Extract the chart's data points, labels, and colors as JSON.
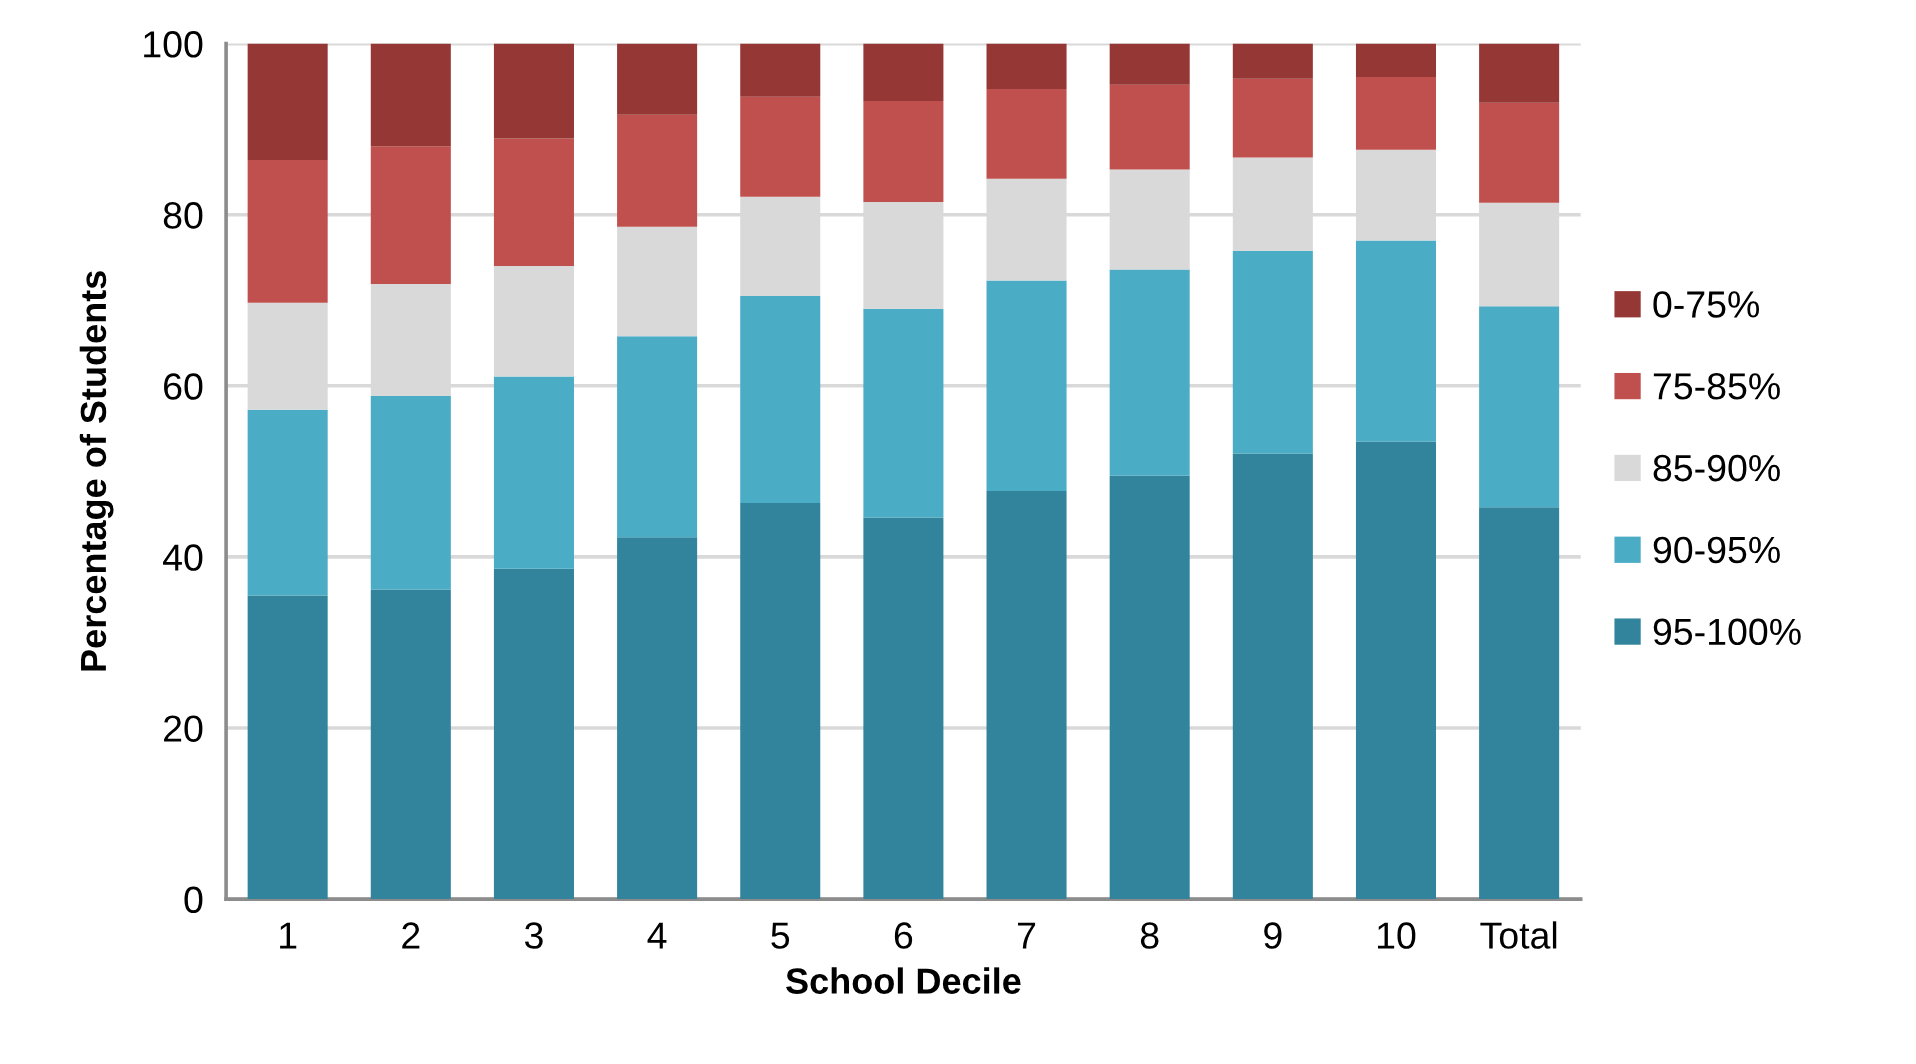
{
  "chart_data": {
    "type": "bar",
    "stacked": true,
    "xlabel": "School Decile",
    "ylabel": "Percentage of Students",
    "categories": [
      "1",
      "2",
      "3",
      "4",
      "5",
      "6",
      "7",
      "8",
      "9",
      "10",
      "Total"
    ],
    "series": [
      {
        "name": "95-100%",
        "color": "#31849b",
        "values": [
          35.5,
          36.2,
          38.6,
          42.3,
          46.3,
          44.6,
          47.7,
          49.5,
          52.1,
          53.5,
          45.8
        ]
      },
      {
        "name": "90-95%",
        "color": "#4bacc6",
        "values": [
          21.7,
          22.6,
          22.5,
          23.5,
          24.2,
          24.4,
          24.6,
          24.1,
          23.7,
          23.5,
          23.5
        ]
      },
      {
        "name": "85-90%",
        "color": "#d9d9d9",
        "values": [
          12.5,
          13.1,
          12.9,
          12.8,
          11.6,
          12.5,
          11.9,
          11.7,
          10.9,
          10.6,
          12.1
        ]
      },
      {
        "name": "75-85%",
        "color": "#c0504d",
        "values": [
          16.7,
          16.1,
          14.9,
          13.1,
          11.7,
          11.8,
          10.5,
          9.9,
          9.2,
          8.5,
          11.7
        ]
      },
      {
        "name": "0-75%",
        "color": "#953735",
        "values": [
          13.6,
          12.0,
          11.1,
          8.3,
          6.2,
          6.7,
          5.3,
          4.8,
          4.1,
          3.9,
          6.9
        ]
      }
    ],
    "ylim": [
      0,
      100
    ],
    "yticks": [
      0,
      20,
      40,
      60,
      80,
      100
    ],
    "grid": "y",
    "legend": "right"
  }
}
